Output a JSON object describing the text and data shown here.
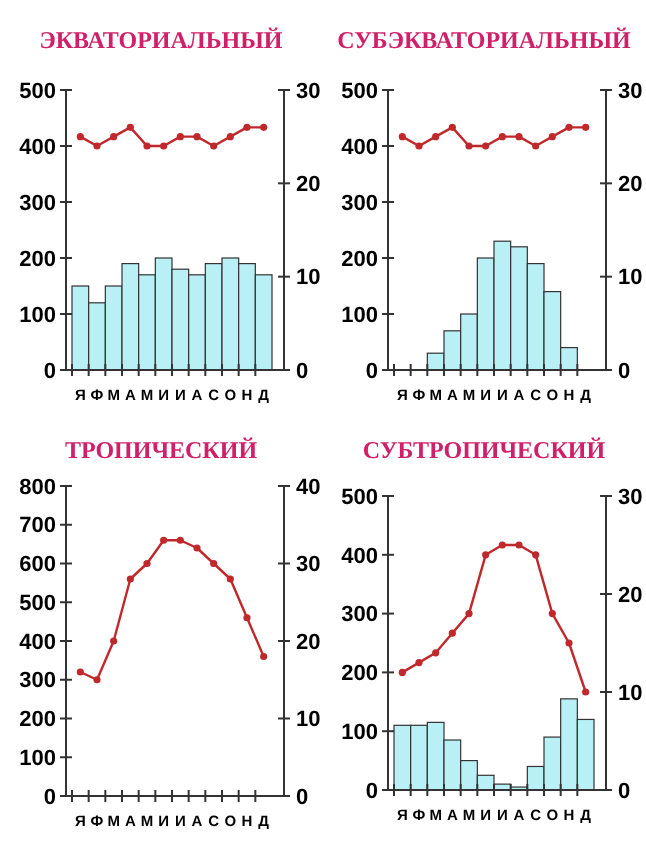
{
  "chart_data": [
    {
      "type": "bar",
      "title": "ЭКВАТОРИАЛЬНЫЙ",
      "categories": [
        "Я",
        "Ф",
        "М",
        "А",
        "М",
        "И",
        "И",
        "А",
        "С",
        "О",
        "Н",
        "Д"
      ],
      "ylim": [
        0,
        500
      ],
      "yticks": [
        0,
        100,
        200,
        300,
        400,
        500
      ],
      "y2lim": [
        0,
        30
      ],
      "y2ticks": [
        0,
        10,
        20,
        30
      ],
      "marker": "circle",
      "series": [
        {
          "color": "#b8f0f5",
          "values": [
            150,
            120,
            150,
            190,
            170,
            200,
            180,
            170,
            190,
            200,
            190,
            170
          ]
        },
        {
          "type": "line",
          "axis": "y2",
          "color": "#c0282b",
          "values": [
            25,
            24,
            25,
            26,
            24,
            24,
            25,
            25,
            24,
            25,
            26,
            26
          ]
        }
      ]
    },
    {
      "type": "bar",
      "title": "СУБЭКВАТОРИАЛЬНЫЙ",
      "categories": [
        "Я",
        "Ф",
        "М",
        "А",
        "М",
        "И",
        "И",
        "А",
        "С",
        "О",
        "Н",
        "Д"
      ],
      "ylim": [
        0,
        500
      ],
      "yticks": [
        0,
        100,
        200,
        300,
        400,
        500
      ],
      "y2lim": [
        0,
        30
      ],
      "y2ticks": [
        0,
        10,
        20,
        30
      ],
      "marker": "circle",
      "series": [
        {
          "color": "#b8f0f5",
          "values": [
            0,
            0,
            30,
            70,
            100,
            200,
            230,
            220,
            190,
            140,
            40,
            0
          ]
        },
        {
          "type": "line",
          "axis": "y2",
          "color": "#c0282b",
          "values": [
            25,
            24,
            25,
            26,
            24,
            24,
            25,
            25,
            24,
            25,
            26,
            26
          ]
        }
      ]
    },
    {
      "type": "bar",
      "title": "ТРОПИЧЕСКИЙ",
      "categories": [
        "Я",
        "Ф",
        "М",
        "А",
        "М",
        "И",
        "И",
        "А",
        "С",
        "О",
        "Н",
        "Д"
      ],
      "ylim": [
        0,
        800
      ],
      "yticks": [
        0,
        100,
        200,
        300,
        400,
        500,
        600,
        700,
        800
      ],
      "y2lim": [
        0,
        40
      ],
      "y2ticks": [
        0,
        10,
        20,
        30,
        40
      ],
      "marker": "circle",
      "series": [
        {
          "color": "#b8f0f5",
          "values": [
            0,
            0,
            0,
            0,
            0,
            0,
            0,
            0,
            0,
            0,
            0,
            0
          ]
        },
        {
          "type": "line",
          "axis": "y2",
          "color": "#c0282b",
          "values": [
            16,
            15,
            20,
            28,
            30,
            33,
            33,
            32,
            30,
            28,
            23,
            18
          ]
        }
      ]
    },
    {
      "type": "bar",
      "title": "СУБТРОПИЧЕСКИЙ",
      "categories": [
        "Я",
        "Ф",
        "М",
        "А",
        "М",
        "И",
        "И",
        "А",
        "С",
        "О",
        "Н",
        "Д"
      ],
      "ylim": [
        0,
        500
      ],
      "yticks": [
        0,
        100,
        200,
        300,
        400,
        500
      ],
      "y2lim": [
        0,
        30
      ],
      "y2ticks": [
        0,
        10,
        20,
        30
      ],
      "marker": "circle",
      "series": [
        {
          "color": "#b8f0f5",
          "values": [
            110,
            110,
            115,
            85,
            50,
            25,
            10,
            5,
            40,
            90,
            155,
            120
          ]
        },
        {
          "type": "line",
          "axis": "y2",
          "color": "#c0282b",
          "values": [
            12,
            13,
            14,
            16,
            18,
            24,
            25,
            25,
            24,
            18,
            15,
            10
          ]
        }
      ]
    }
  ]
}
